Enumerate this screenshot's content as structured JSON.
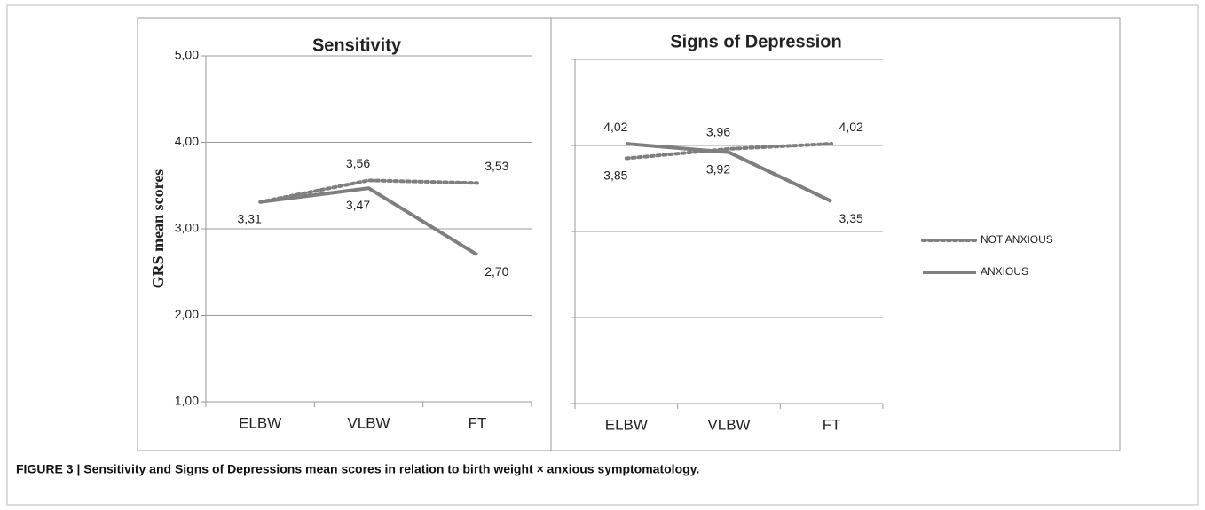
{
  "chart_data": [
    {
      "type": "line",
      "title": "Sensitivity",
      "y_label": "GRS mean scores",
      "categories": [
        "ELBW",
        "VLBW",
        "FT"
      ],
      "ylim": [
        1,
        5
      ],
      "yticks": [
        {
          "value": 1,
          "label": "1,00"
        },
        {
          "value": 2,
          "label": "2,00"
        },
        {
          "value": 3,
          "label": "3,00"
        },
        {
          "value": 4,
          "label": "4,00"
        },
        {
          "value": 5,
          "label": "5,00"
        }
      ],
      "grid": true,
      "series": [
        {
          "name": "NOT ANXIOUS",
          "color": "#7f7f7f",
          "style": "dotted",
          "values": [
            3.31,
            3.56,
            3.53
          ],
          "value_labels": [
            null,
            "3,56",
            "3,53"
          ]
        },
        {
          "name": "ANXIOUS",
          "color": "#7f7f7f",
          "style": "solid",
          "values": [
            3.31,
            3.47,
            2.7
          ],
          "value_labels": [
            "3,31",
            "3,47",
            "2,70"
          ]
        }
      ]
    },
    {
      "type": "line",
      "title": "Signs of Depression",
      "categories": [
        "ELBW",
        "VLBW",
        "FT"
      ],
      "ylim": [
        1,
        5
      ],
      "yticks": [
        1,
        2,
        3,
        4,
        5
      ],
      "grid": true,
      "series": [
        {
          "color": "#7f7f7f",
          "style": "dotted",
          "values": [
            3.85,
            3.96,
            4.02
          ],
          "value_labels": [
            "3,85",
            "3,96",
            "4,02"
          ]
        },
        {
          "color": "#7f7f7f",
          "style": "solid",
          "values": [
            4.02,
            3.92,
            3.35
          ],
          "value_labels": [
            "4,02",
            "3,92",
            "3,35"
          ]
        }
      ]
    }
  ],
  "legend": "right",
  "caption": "FIGURE 3 | Sensitivity and Signs of Depressions mean scores in relation to birth weight × anxious symptomatology."
}
